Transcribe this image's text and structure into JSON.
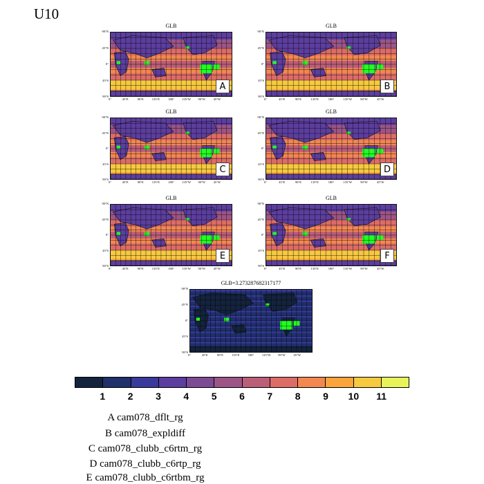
{
  "figure_title": "U10",
  "chart_data": {
    "type": "map",
    "variable": "U10",
    "panels": [
      {
        "letter": "A",
        "title": "GLB",
        "case": "cam078_dflt_rg"
      },
      {
        "letter": "B",
        "title": "GLB",
        "case": "cam078_expldiff"
      },
      {
        "letter": "C",
        "title": "GLB",
        "case": "cam078_clubb_c6rtm_rg"
      },
      {
        "letter": "D",
        "title": "GLB",
        "case": "cam078_clubb_c6rtp_rg"
      },
      {
        "letter": "E",
        "title": "GLB",
        "case": "cam078_clubb_c6rtbm_rg"
      },
      {
        "letter": "F",
        "title": "GLB",
        "case": ""
      },
      {
        "letter": "",
        "title": "GLB=3.273287682317177",
        "case": ""
      }
    ],
    "lat_ticks": [
      "90°N",
      "45°N",
      "0°",
      "45°S",
      "90°S"
    ],
    "lon_ticks": [
      "0°",
      "45°E",
      "90°E",
      "135°E",
      "180°",
      "135°W",
      "90°W",
      "45°W"
    ],
    "colorbar": {
      "levels": [
        "1",
        "2",
        "3",
        "4",
        "5",
        "6",
        "7",
        "8",
        "9",
        "10",
        "11"
      ],
      "colors": [
        "#14233d",
        "#1f306b",
        "#3a3a9c",
        "#5c3e9e",
        "#7d4a94",
        "#9c5586",
        "#bb5e78",
        "#dc6c66",
        "#f28850",
        "#f9a43c",
        "#f6c93f",
        "#e8f35a"
      ]
    },
    "marker_color": "#22ff22"
  },
  "legend": [
    "A  cam078_dflt_rg",
    "B  cam078_expldiff",
    "C  cam078_clubb_c6rtm_rg",
    "D  cam078_clubb_c6rtp_rg",
    "E  cam078_clubb_c6rtbm_rg"
  ]
}
